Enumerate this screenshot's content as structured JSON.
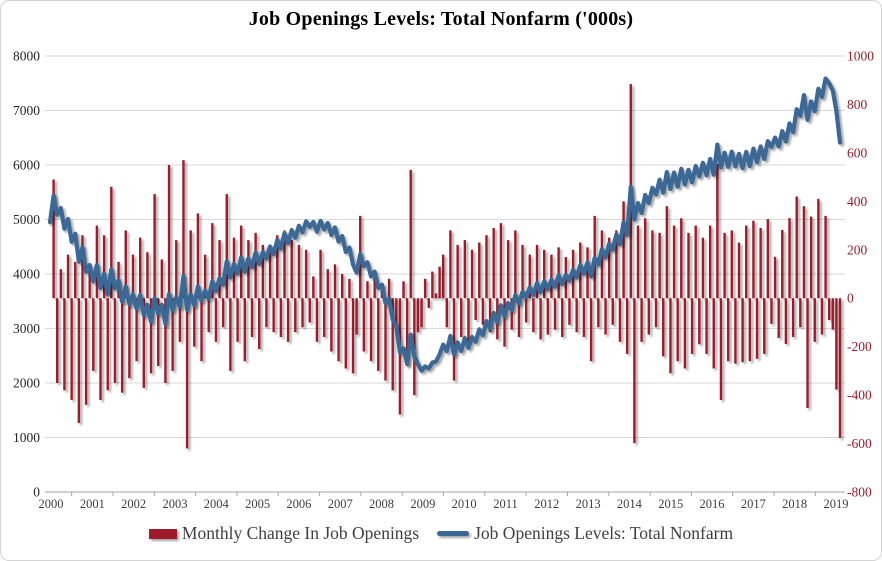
{
  "title": "Job Openings Levels: Total Nonfarm ('000s)",
  "colors": {
    "bar": "#9e1b2c",
    "line": "#3a6795",
    "grid": "#d9d9d9",
    "axis_line": "#a6a6a6",
    "axis_text": "#404040",
    "left_axis_text": "#262626",
    "right_axis_text": "#9e1b2c",
    "frame_border": "#d4d4d4"
  },
  "legend": {
    "bar_label": "Monthly Change In Job Openings",
    "line_label": "Job Openings Levels: Total Nonfarm"
  },
  "chart_data": {
    "type": "bar+line combo",
    "title": "Job Openings Levels: Total Nonfarm ('000s)",
    "frequency": "monthly",
    "grid": "horizontal only",
    "legend_position": "bottom",
    "x_tick_labels": [
      "2000",
      "2001",
      "2002",
      "2003",
      "2004",
      "2005",
      "2006",
      "2007",
      "2008",
      "2009",
      "2010",
      "2011",
      "2012",
      "2013",
      "2014",
      "2015",
      "2016",
      "2017",
      "2018",
      "2019"
    ],
    "left_axis": {
      "min": 0,
      "max": 8000,
      "step": 1000,
      "tick_labels": [
        "8000",
        "7000",
        "6000",
        "5000",
        "4000",
        "3000",
        "2000",
        "1000",
        "0"
      ],
      "applies_to": "Job Openings Levels: Total Nonfarm"
    },
    "right_axis": {
      "min": -800,
      "max": 1000,
      "step": 200,
      "tick_labels": [
        "1000",
        "800",
        "600",
        "400",
        "200",
        "0",
        "-200",
        "-400",
        "-600",
        "-800"
      ],
      "applies_to": "Monthly Change In Job Openings"
    },
    "series": [
      {
        "name": "Monthly Change In Job Openings",
        "type": "bar",
        "axis": "right",
        "color": "#9e1b2c",
        "values": "first differences of levels, computed at render time"
      },
      {
        "name": "Job Openings Levels: Total Nonfarm",
        "type": "line",
        "axis": "left",
        "color": "#3a6795",
        "values_key": "levels"
      }
    ],
    "levels": [
      4950,
      5440,
      5090,
      5210,
      4830,
      5010,
      4590,
      4740,
      4225,
      4485,
      4045,
      4165,
      3865,
      4165,
      3745,
      4005,
      3625,
      4085,
      3735,
      3885,
      3495,
      3775,
      3445,
      3625,
      3365,
      3615,
      3245,
      3435,
      3125,
      3555,
      3275,
      3435,
      3085,
      3635,
      3335,
      3575,
      3395,
      3965,
      3345,
      3625,
      3425,
      3775,
      3515,
      3695,
      3555,
      3865,
      3685,
      3925,
      3805,
      4235,
      3935,
      4185,
      4005,
      4305,
      4045,
      4285,
      4125,
      4395,
      4185,
      4405,
      4285,
      4505,
      4365,
      4625,
      4465,
      4745,
      4565,
      4805,
      4665,
      4885,
      4765,
      4965,
      4865,
      4955,
      4775,
      4975,
      4815,
      4935,
      4715,
      4855,
      4595,
      4695,
      4405,
      4485,
      4175,
      4025,
      4365,
      4145,
      4215,
      3955,
      4045,
      3745,
      3805,
      3465,
      3545,
      3165,
      3045,
      2565,
      2635,
      2355,
      2885,
      2485,
      2345,
      2225,
      2305,
      2265,
      2375,
      2395,
      2525,
      2705,
      2585,
      2865,
      2525,
      2745,
      2585,
      2825,
      2645,
      2845,
      2755,
      2985,
      2875,
      3135,
      2995,
      3285,
      3115,
      3425,
      3225,
      3465,
      3335,
      3615,
      3455,
      3675,
      3575,
      3755,
      3615,
      3835,
      3665,
      3865,
      3715,
      3895,
      3765,
      3975,
      3815,
      3985,
      3875,
      4075,
      3935,
      4165,
      4005,
      4215,
      3955,
      4295,
      4175,
      4455,
      4305,
      4555,
      4445,
      4725,
      4545,
      4945,
      4715,
      5599,
      5001,
      5301,
      5121,
      5451,
      5301,
      5581,
      5461,
      5731,
      5491,
      5871,
      5561,
      5861,
      5601,
      5931,
      5641,
      5911,
      5681,
      5981,
      5791,
      6041,
      5811,
      6111,
      5821,
      6375,
      5955,
      6225,
      5965,
      6245,
      5975,
      6205,
      5941,
      6241,
      5981,
      6301,
      6051,
      6341,
      6111,
      6438,
      6332,
      6503,
      6339,
      6621,
      6432,
      6763,
      6603,
      7023,
      6903,
      7283,
      6830,
      7167,
      6987,
      7397,
      7247,
      7587,
      7497,
      7367,
      6990,
      6413
    ]
  }
}
